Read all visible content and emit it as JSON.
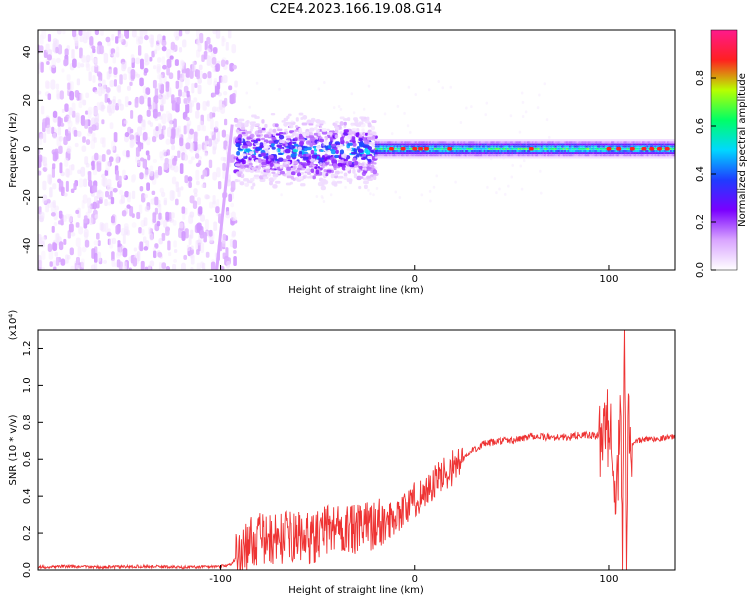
{
  "title": "C2E4.2023.166.19.08.G14",
  "chart_data": [
    {
      "type": "heatmap",
      "title": "C2E4.2023.166.19.08.G14",
      "xlabel": "Height of straight line (km)",
      "ylabel": "Frequency (Hz)",
      "xlim": [
        -194,
        134
      ],
      "ylim": [
        -50,
        49
      ],
      "xticks": [
        -100,
        0,
        100
      ],
      "xtick_labels": [
        "-100",
        "0",
        "100"
      ],
      "yticks": [
        -40,
        -20,
        0,
        20,
        40
      ],
      "ytick_labels": [
        "-40",
        "-20",
        "0",
        "20",
        "40"
      ],
      "colorbar": {
        "label": "Normalized spectral amplitude",
        "range": [
          0.0,
          1.0
        ],
        "ticks": [
          0.0,
          0.2,
          0.4,
          0.6,
          0.8
        ],
        "tick_labels": [
          "0.0",
          "0.2",
          "0.4",
          "0.6",
          "0.8"
        ],
        "colormap": [
          "#ffffff",
          "#d9a5ff",
          "#7a00ff",
          "#1f3cff",
          "#00d8ff",
          "#00ff66",
          "#b8ff00",
          "#ff2020",
          "#ff1a8c"
        ]
      },
      "regions": [
        {
          "x_range": [
            -194,
            -92
          ],
          "freq_range": [
            -50,
            49
          ],
          "amplitude": 0.05,
          "description": "broadband noise"
        },
        {
          "x_range": [
            -92,
            -20
          ],
          "freq_center": -1,
          "freq_half_width": 8,
          "amplitude": 0.35
        },
        {
          "x_range": [
            -20,
            134
          ],
          "freq_center": 0,
          "freq_half_width": 3,
          "amplitude": 0.6
        }
      ],
      "line_features": [
        {
          "x_start": -102,
          "x_end": -94,
          "freq_start": -50,
          "freq_end": 10
        }
      ],
      "grid": false
    },
    {
      "type": "line",
      "xlabel": "Height of straight line (km)",
      "ylabel": "SNR (10 * v/v)",
      "y_multiplier": "(x10⁴)",
      "xlim": [
        -194,
        134
      ],
      "ylim": [
        0.0,
        1.3
      ],
      "xticks": [
        -100,
        0,
        100
      ],
      "xtick_labels": [
        "-100",
        "0",
        "100"
      ],
      "yticks": [
        0.0,
        0.2,
        0.4,
        0.6,
        0.8,
        1.0,
        1.2
      ],
      "ytick_labels": [
        "0.0",
        "0.2",
        "0.4",
        "0.6",
        "0.8",
        "1.0",
        "1.2"
      ],
      "color": "#ee3333",
      "series": [
        {
          "x": [
            -194,
            -180,
            -160,
            -140,
            -120,
            -100,
            -95,
            -90,
            -85,
            -80,
            -75,
            -70,
            -65,
            -60,
            -55,
            -50,
            -45,
            -40,
            -35,
            -30,
            -25,
            -20,
            -15,
            -10,
            -5,
            0,
            5,
            10,
            15,
            20,
            25,
            30,
            35,
            40,
            45,
            50,
            55,
            60,
            65,
            70,
            75,
            80,
            85,
            90,
            95,
            98,
            100,
            102,
            104,
            106,
            107,
            108,
            109,
            110,
            112,
            115,
            120,
            125,
            130,
            134
          ],
          "y": [
            0.015,
            0.02,
            0.015,
            0.02,
            0.015,
            0.02,
            0.03,
            0.08,
            0.15,
            0.17,
            0.16,
            0.17,
            0.18,
            0.18,
            0.17,
            0.18,
            0.22,
            0.24,
            0.22,
            0.21,
            0.24,
            0.25,
            0.25,
            0.3,
            0.33,
            0.38,
            0.42,
            0.47,
            0.52,
            0.56,
            0.6,
            0.65,
            0.68,
            0.69,
            0.7,
            0.7,
            0.71,
            0.73,
            0.72,
            0.72,
            0.72,
            0.72,
            0.73,
            0.73,
            0.72,
            0.73,
            0.78,
            0.72,
            0.35,
            0.9,
            0.05,
            1.25,
            0.1,
            0.85,
            0.68,
            0.7,
            0.71,
            0.71,
            0.72,
            0.72
          ]
        }
      ],
      "grid": false
    }
  ]
}
